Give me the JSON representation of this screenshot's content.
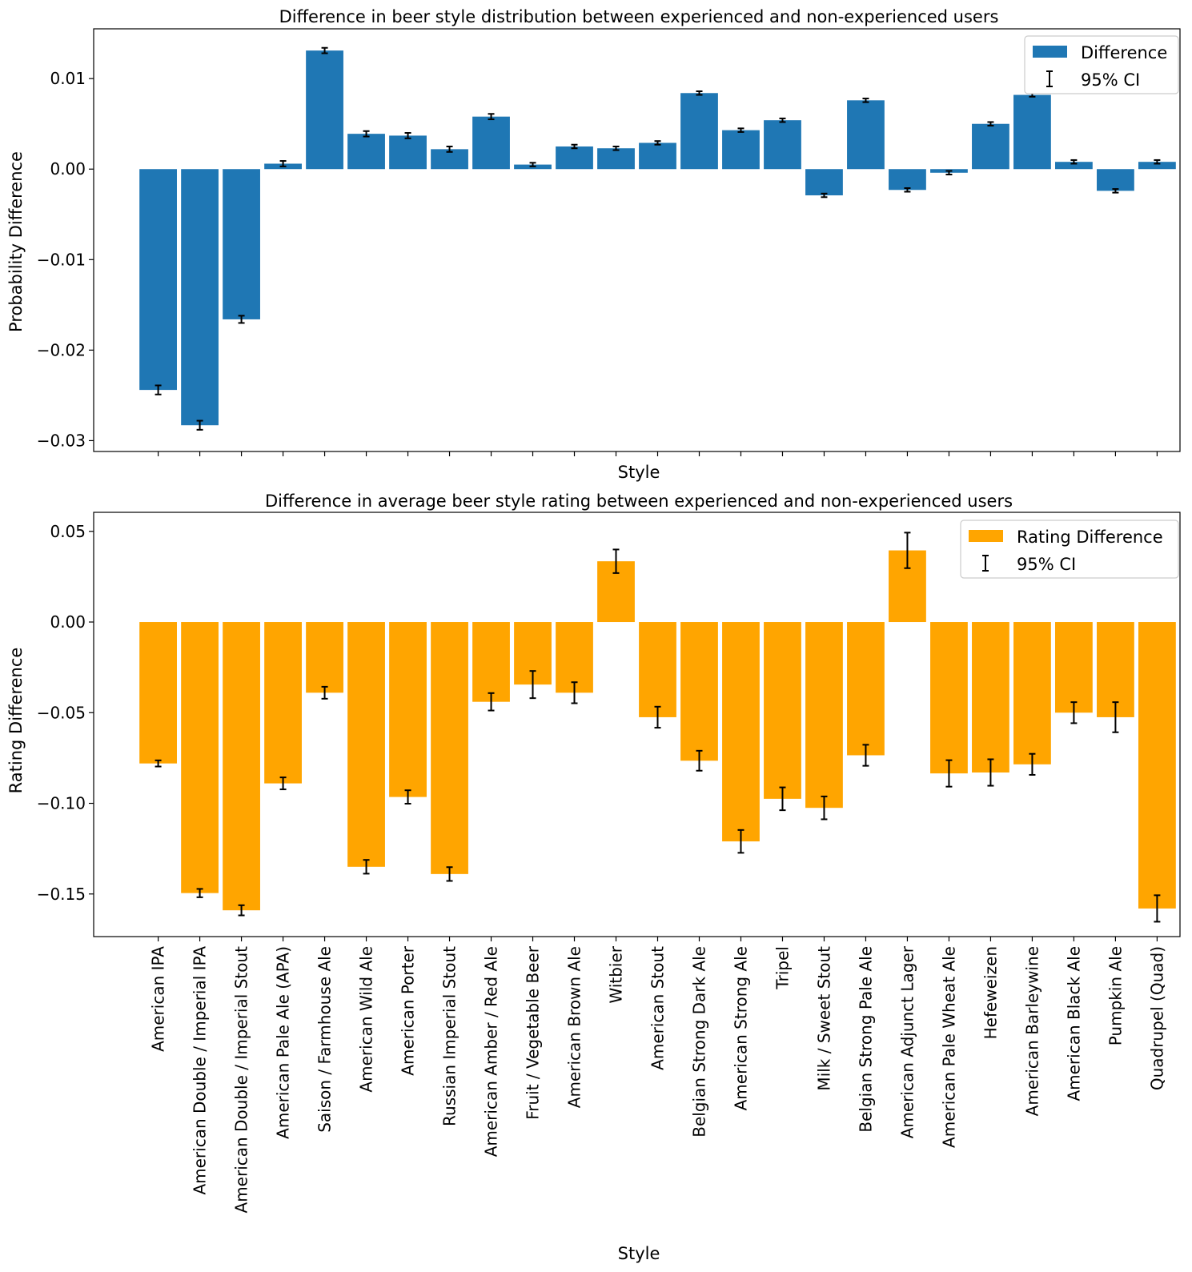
{
  "colors": {
    "top_bar": "#1f77b4",
    "bottom_bar": "#ffa500",
    "error": "#000000"
  },
  "chart_data": [
    {
      "type": "bar",
      "title": "Difference in beer style distribution between experienced and non-experienced users",
      "xlabel": "Style",
      "ylabel": "Probability Difference",
      "ylim": [
        -0.0312,
        0.0155
      ],
      "yticks": [
        0.01,
        0.0,
        -0.01,
        -0.02,
        -0.03
      ],
      "ytick_labels": [
        "0.01",
        "0.00",
        "−0.01",
        "−0.02",
        "−0.03"
      ],
      "legend": {
        "position": "top-right",
        "series_label": "Difference",
        "ci_label": "95% CI"
      },
      "categories": [
        "American IPA",
        "American Double / Imperial IPA",
        "American Double / Imperial Stout",
        "American Pale Ale (APA)",
        "Saison / Farmhouse Ale",
        "American Wild Ale",
        "American Porter",
        "Russian Imperial Stout",
        "American Amber / Red Ale",
        "Fruit / Vegetable Beer",
        "American Brown Ale",
        "Witbier",
        "American Stout",
        "Belgian Strong Dark Ale",
        "American Strong Ale",
        "Tripel",
        "Milk / Sweet Stout",
        "Belgian Strong Pale Ale",
        "American Adjunct Lager",
        "American Pale Wheat Ale",
        "Hefeweizen",
        "American Barleywine",
        "American Black Ale",
        "Pumpkin Ale",
        "Quadrupel (Quad)"
      ],
      "values": [
        -0.0244,
        -0.0283,
        -0.0166,
        0.0006,
        0.0131,
        0.0039,
        0.0037,
        0.0022,
        0.0058,
        0.0005,
        0.0025,
        0.0023,
        0.0029,
        0.0084,
        0.0043,
        0.0054,
        -0.0029,
        0.0076,
        -0.0023,
        -0.0004,
        0.005,
        0.0082,
        0.0008,
        -0.0024,
        0.0008
      ],
      "ci_half": [
        0.0005,
        0.0005,
        0.0004,
        0.0003,
        0.0003,
        0.0003,
        0.0003,
        0.0003,
        0.0003,
        0.0002,
        0.0002,
        0.0002,
        0.0002,
        0.0002,
        0.0002,
        0.0002,
        0.0002,
        0.0002,
        0.0002,
        0.0002,
        0.0002,
        0.0002,
        0.0002,
        0.0002,
        0.0002
      ],
      "show_tick_labels": false
    },
    {
      "type": "bar",
      "title": "Difference in average beer style rating between experienced and non-experienced users",
      "xlabel": "Style",
      "ylabel": "Rating Difference",
      "ylim": [
        -0.1735,
        0.0605
      ],
      "yticks": [
        0.05,
        0.0,
        -0.05,
        -0.1,
        -0.15
      ],
      "ytick_labels": [
        "0.05",
        "0.00",
        "−0.05",
        "−0.10",
        "−0.15"
      ],
      "legend": {
        "position": "top-right",
        "series_label": "Rating Difference",
        "ci_label": "95% CI"
      },
      "categories": [
        "American IPA",
        "American Double / Imperial IPA",
        "American Double / Imperial Stout",
        "American Pale Ale (APA)",
        "Saison / Farmhouse Ale",
        "American Wild Ale",
        "American Porter",
        "Russian Imperial Stout",
        "American Amber / Red Ale",
        "Fruit / Vegetable Beer",
        "American Brown Ale",
        "Witbier",
        "American Stout",
        "Belgian Strong Dark Ale",
        "American Strong Ale",
        "Tripel",
        "Milk / Sweet Stout",
        "Belgian Strong Pale Ale",
        "American Adjunct Lager",
        "American Pale Wheat Ale",
        "Hefeweizen",
        "American Barleywine",
        "American Black Ale",
        "Pumpkin Ale",
        "Quadrupel (Quad)"
      ],
      "values": [
        -0.078,
        -0.1495,
        -0.159,
        -0.089,
        -0.039,
        -0.135,
        -0.0965,
        -0.139,
        -0.044,
        -0.0345,
        -0.039,
        0.0335,
        -0.0525,
        -0.0765,
        -0.121,
        -0.0975,
        -0.1025,
        -0.0735,
        0.0395,
        -0.0835,
        -0.083,
        -0.0785,
        -0.05,
        -0.0525,
        -0.158
      ],
      "ci_half": [
        0.0017,
        0.0023,
        0.0028,
        0.0033,
        0.0033,
        0.0038,
        0.0037,
        0.0038,
        0.0048,
        0.0075,
        0.0058,
        0.0065,
        0.0058,
        0.0055,
        0.0063,
        0.0063,
        0.0063,
        0.0058,
        0.0098,
        0.0073,
        0.0073,
        0.0058,
        0.0058,
        0.0083,
        0.0073
      ],
      "show_tick_labels": true
    }
  ]
}
